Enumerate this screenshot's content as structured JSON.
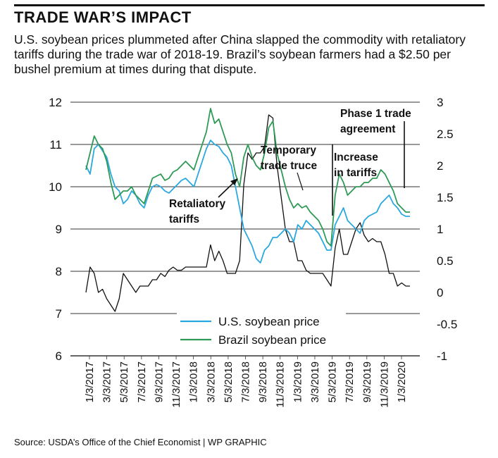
{
  "header": {
    "title": "TRADE WAR’S IMPACT",
    "subtitle": "U.S. soybean prices plummeted after China slapped the commodity with retaliatory tariffs during the trade war of 2018-19. Brazil’s soybean farmers had a $2.50 per bushel premium at times during that dispute."
  },
  "footer": {
    "source": "Source: USDA’s Office of the Chief Economist | WP GRAPHIC"
  },
  "chart_data": {
    "type": "line",
    "title": "",
    "xlabel": "",
    "ylabel": "",
    "ylim": [
      6,
      12
    ],
    "y2lim": [
      -1,
      3
    ],
    "y_ticks": [
      "12",
      "11",
      "10",
      "9",
      "8",
      "7",
      "6"
    ],
    "y2_ticks": [
      "3",
      "2.5",
      "2",
      "1.5",
      "1",
      "0.5",
      "0",
      "-0.5",
      "-1"
    ],
    "x_ticks": [
      "1/3/2017",
      "3/3/2017",
      "5/3/2017",
      "7/3/2017",
      "9/3/2017",
      "11/3/2017",
      "1/3/2018",
      "3/3/2018",
      "5/3/2018",
      "7/3/2018",
      "9/3/2018",
      "11/3/2018",
      "1/3/2019",
      "3/3/2019",
      "5/3/2019",
      "7/3/2019",
      "9/3/2019",
      "11/3/2019",
      "1/3/2020"
    ],
    "grid": "horizontal",
    "legend_position": "bottom-center",
    "series": [
      {
        "name": "U.S. soybean price",
        "color": "#29a8e0",
        "axis": "left",
        "values": [
          10.5,
          10.3,
          10.9,
          11.0,
          10.85,
          10.7,
          10.3,
          10.0,
          9.9,
          9.6,
          9.7,
          9.9,
          9.8,
          9.6,
          9.5,
          9.8,
          10.0,
          10.05,
          10.0,
          9.9,
          9.85,
          9.95,
          10.05,
          10.15,
          10.2,
          10.1,
          10.0,
          10.3,
          10.6,
          10.9,
          11.1,
          11.0,
          10.95,
          10.8,
          10.7,
          10.5,
          10.0,
          9.5,
          9.0,
          8.8,
          8.6,
          8.3,
          8.2,
          8.5,
          8.6,
          8.8,
          8.8,
          8.9,
          9.0,
          8.9,
          8.7,
          9.1,
          9.0,
          9.2,
          9.1,
          9.0,
          8.9,
          8.7,
          8.5,
          8.5,
          9.1,
          9.3,
          9.5,
          9.2,
          9.1,
          9.0,
          8.9,
          9.2,
          9.3,
          9.35,
          9.4,
          9.6,
          9.7,
          9.8,
          9.6,
          9.5,
          9.35,
          9.3,
          9.3
        ]
      },
      {
        "name": "Brazil soybean price",
        "color": "#2e9a56",
        "axis": "left",
        "values": [
          10.4,
          10.8,
          11.2,
          11.0,
          10.9,
          10.6,
          10.1,
          9.7,
          9.8,
          9.9,
          9.9,
          10.0,
          9.8,
          9.7,
          9.6,
          9.9,
          10.2,
          10.25,
          10.3,
          10.15,
          10.2,
          10.35,
          10.4,
          10.5,
          10.6,
          10.5,
          10.4,
          10.7,
          11.0,
          11.3,
          11.85,
          11.5,
          11.6,
          11.3,
          11.0,
          10.8,
          10.3,
          10.0,
          10.7,
          11.0,
          10.7,
          10.5,
          10.4,
          10.8,
          11.4,
          11.55,
          10.8,
          10.4,
          10.0,
          9.7,
          9.5,
          9.6,
          9.5,
          9.55,
          9.4,
          9.3,
          9.2,
          9.0,
          8.7,
          8.6,
          9.8,
          10.3,
          10.1,
          9.8,
          9.9,
          10.0,
          10.0,
          10.1,
          10.1,
          10.2,
          10.2,
          10.4,
          10.3,
          10.1,
          9.9,
          9.6,
          9.5,
          9.4,
          9.4
        ]
      },
      {
        "name": "",
        "color": "#111111",
        "axis": "right",
        "values": [
          0.0,
          0.4,
          0.3,
          0.0,
          0.05,
          -0.1,
          -0.2,
          -0.3,
          -0.1,
          0.3,
          0.2,
          0.1,
          0.0,
          0.1,
          0.1,
          0.1,
          0.2,
          0.2,
          0.3,
          0.25,
          0.35,
          0.4,
          0.35,
          0.35,
          0.4,
          0.4,
          0.4,
          0.4,
          0.4,
          0.4,
          0.75,
          0.5,
          0.65,
          0.5,
          0.3,
          0.3,
          0.3,
          0.5,
          1.7,
          2.2,
          2.1,
          2.2,
          2.2,
          2.3,
          2.8,
          2.75,
          2.0,
          1.5,
          1.0,
          0.8,
          0.8,
          0.5,
          0.5,
          0.35,
          0.3,
          0.3,
          0.3,
          0.3,
          0.2,
          0.1,
          0.7,
          1.0,
          0.6,
          0.6,
          0.8,
          1.0,
          1.1,
          0.9,
          0.8,
          0.85,
          0.8,
          0.8,
          0.6,
          0.3,
          0.3,
          0.1,
          0.15,
          0.1,
          0.1
        ]
      }
    ],
    "annotations": [
      {
        "text": "Retaliatory",
        "text2": "tariffs"
      },
      {
        "text": "Temporary",
        "text2": "trade truce"
      },
      {
        "text": "Increase",
        "text2": "in tariffs"
      },
      {
        "text": "Phase 1 trade",
        "text2": "agreement"
      }
    ]
  }
}
